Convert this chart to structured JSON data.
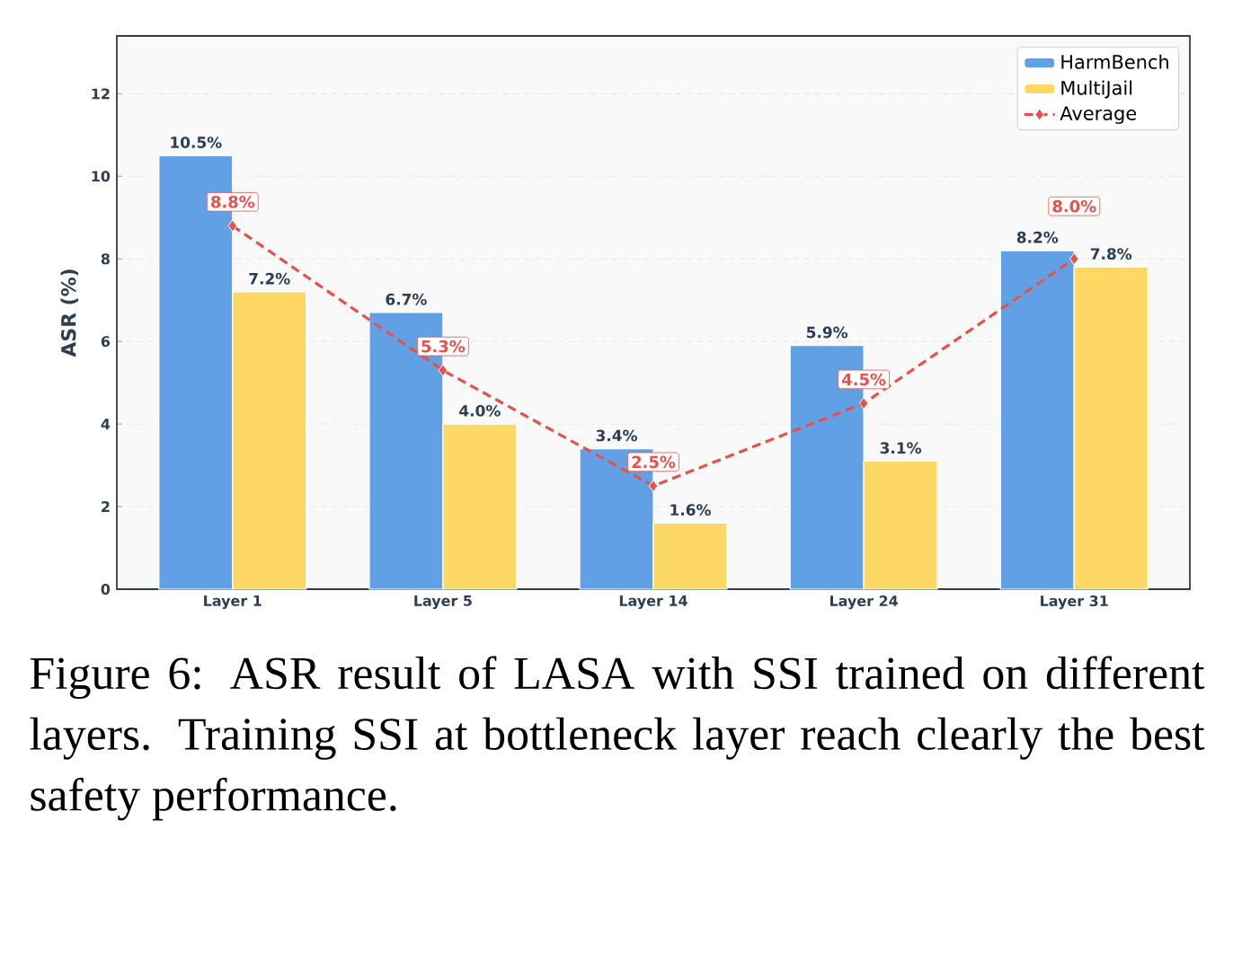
{
  "chart_data": {
    "type": "bar",
    "categories": [
      "Layer 1",
      "Layer 5",
      "Layer 14",
      "Layer 24",
      "Layer 31"
    ],
    "ylabel": "ASR (%)",
    "ylim": [
      0,
      13.4
    ],
    "yticks": [
      0,
      2,
      4,
      6,
      8,
      10,
      12
    ],
    "grid": "y",
    "legend": "top right",
    "series": [
      {
        "name": "HarmBench",
        "color": "#62a0e6",
        "values": [
          10.5,
          6.7,
          3.4,
          5.9,
          8.2
        ],
        "value_labels": [
          "10.5%",
          "6.7%",
          "3.4%",
          "5.9%",
          "8.2%"
        ]
      },
      {
        "name": "MultiJail",
        "color": "#fdd865",
        "values": [
          7.2,
          4.0,
          1.6,
          3.1,
          7.8
        ],
        "value_labels": [
          "7.2%",
          "4.0%",
          "1.6%",
          "3.1%",
          "7.8%"
        ]
      },
      {
        "name": "Average",
        "type": "line",
        "color": "#e8514a",
        "marker": "diamond",
        "line_style": "dashed",
        "values": [
          8.8,
          5.3,
          2.5,
          4.5,
          8.0
        ],
        "value_labels": [
          "8.8%",
          "5.3%",
          "2.5%",
          "4.5%",
          "8.0%"
        ]
      }
    ],
    "annotations": [
      "Figure 6: ASR result of LASA with SSI trained on different layers. Training SSI at bottleneck layer reach clearly the best safety performance."
    ]
  }
}
